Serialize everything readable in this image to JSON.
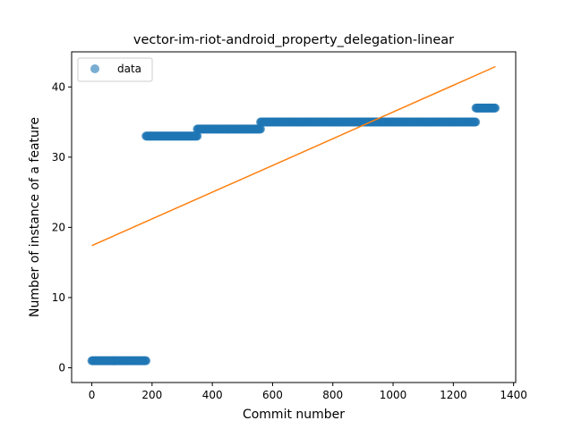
{
  "chart_data": {
    "type": "scatter",
    "title": "vector-im-riot-android_property_delegation-linear",
    "xlabel": "Commit number",
    "ylabel": "Number of instance of a feature",
    "xlim": [
      -67,
      1407
    ],
    "ylim": [
      -2.1,
      45
    ],
    "xticks": [
      0,
      200,
      400,
      600,
      800,
      1000,
      1200,
      1400
    ],
    "yticks": [
      0,
      10,
      20,
      30,
      40
    ],
    "grid": false,
    "legend": {
      "position": "upper-left",
      "entries": [
        "data"
      ]
    },
    "colors": {
      "data": "#1f77b4",
      "fit": "#ff7f0e"
    },
    "series": [
      {
        "name": "data",
        "kind": "scatter",
        "segments": [
          {
            "x_start": 0,
            "x_end": 180,
            "y": 1
          },
          {
            "x_start": 180,
            "x_end": 350,
            "y": 33
          },
          {
            "x_start": 350,
            "x_end": 560,
            "y": 34
          },
          {
            "x_start": 560,
            "x_end": 1275,
            "y": 35
          },
          {
            "x_start": 1275,
            "x_end": 1340,
            "y": 37
          }
        ]
      },
      {
        "kind": "line",
        "x": [
          0,
          1340
        ],
        "y": [
          17.4,
          42.9
        ]
      }
    ]
  }
}
